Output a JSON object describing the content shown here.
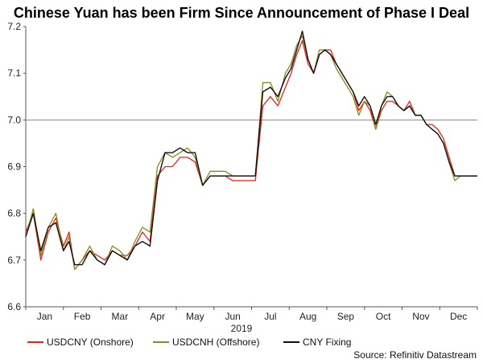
{
  "chart_data": {
    "type": "line",
    "title": "Chinese Yuan has been Firm Since Announcement of Phase I Deal",
    "xlabel": "2019",
    "ylabel": "",
    "source": "Source: Refinitiv Datastream",
    "ylim": [
      6.6,
      7.2
    ],
    "y_ticks": [
      "6.6",
      "6.7",
      "6.8",
      "6.9",
      "7.0",
      "7.1",
      "7.2"
    ],
    "reference_line": 7.0,
    "x_months": [
      "Jan",
      "Feb",
      "Mar",
      "Apr",
      "May",
      "Jun",
      "Jul",
      "Aug",
      "Sep",
      "Oct",
      "Nov",
      "Dec"
    ],
    "x_month_pos": [
      0.5,
      1.5,
      2.5,
      3.5,
      4.5,
      5.5,
      6.5,
      7.5,
      8.5,
      9.5,
      10.5,
      11.5
    ],
    "xlim": [
      0,
      12
    ],
    "grid": false,
    "legend_position": "bottom",
    "series": [
      {
        "name": "USDCNY (Onshore)",
        "color": "#e8201c",
        "x": [
          0.0,
          0.2,
          0.4,
          0.6,
          0.8,
          1.0,
          1.15,
          1.3,
          1.5,
          1.7,
          1.9,
          2.1,
          2.3,
          2.5,
          2.7,
          2.9,
          3.1,
          3.3,
          3.5,
          3.7,
          3.9,
          4.1,
          4.3,
          4.5,
          4.7,
          4.9,
          5.1,
          5.3,
          5.5,
          5.7,
          5.9,
          6.1,
          6.3,
          6.5,
          6.7,
          6.9,
          7.05,
          7.2,
          7.35,
          7.5,
          7.65,
          7.8,
          7.95,
          8.1,
          8.25,
          8.4,
          8.55,
          8.7,
          8.85,
          9.0,
          9.15,
          9.3,
          9.45,
          9.6,
          9.75,
          9.9,
          10.05,
          10.2,
          10.35,
          10.5,
          10.65,
          10.8,
          10.95,
          11.1,
          11.25,
          11.4,
          11.55,
          11.7,
          11.85,
          12.0
        ],
        "values": [
          6.76,
          6.8,
          6.7,
          6.76,
          6.79,
          6.73,
          6.76,
          6.68,
          6.7,
          6.72,
          6.71,
          6.7,
          6.72,
          6.71,
          6.71,
          6.73,
          6.76,
          6.74,
          6.88,
          6.9,
          6.9,
          6.92,
          6.92,
          6.91,
          6.86,
          6.88,
          6.88,
          6.88,
          6.87,
          6.87,
          6.87,
          6.87,
          7.03,
          7.05,
          7.03,
          7.07,
          7.1,
          7.14,
          7.17,
          7.12,
          7.1,
          7.14,
          7.15,
          7.15,
          7.12,
          7.1,
          7.08,
          7.06,
          7.02,
          7.04,
          7.02,
          6.98,
          7.02,
          7.04,
          7.04,
          7.03,
          7.02,
          7.04,
          7.01,
          7.01,
          6.99,
          6.99,
          6.98,
          6.96,
          6.92,
          6.88,
          6.88,
          6.88,
          6.88,
          6.88
        ]
      },
      {
        "name": "USDCNH (Offshore)",
        "color": "#8a8a1c",
        "x": [
          0.0,
          0.2,
          0.4,
          0.6,
          0.8,
          1.0,
          1.15,
          1.3,
          1.5,
          1.7,
          1.9,
          2.1,
          2.3,
          2.5,
          2.7,
          2.9,
          3.1,
          3.3,
          3.5,
          3.7,
          3.9,
          4.1,
          4.3,
          4.5,
          4.7,
          4.9,
          5.1,
          5.3,
          5.5,
          5.7,
          5.9,
          6.1,
          6.3,
          6.5,
          6.7,
          6.9,
          7.05,
          7.2,
          7.35,
          7.5,
          7.65,
          7.8,
          7.95,
          8.1,
          8.25,
          8.4,
          8.55,
          8.7,
          8.85,
          9.0,
          9.15,
          9.3,
          9.45,
          9.6,
          9.75,
          9.9,
          10.05,
          10.2,
          10.35,
          10.5,
          10.65,
          10.8,
          10.95,
          11.1,
          11.25,
          11.4,
          11.55,
          11.7,
          11.85,
          12.0
        ],
        "values": [
          6.75,
          6.81,
          6.71,
          6.77,
          6.8,
          6.72,
          6.75,
          6.68,
          6.7,
          6.73,
          6.7,
          6.69,
          6.73,
          6.72,
          6.7,
          6.74,
          6.77,
          6.76,
          6.9,
          6.93,
          6.92,
          6.93,
          6.94,
          6.92,
          6.86,
          6.89,
          6.89,
          6.89,
          6.88,
          6.88,
          6.88,
          6.88,
          7.08,
          7.08,
          7.04,
          7.1,
          7.12,
          7.16,
          7.18,
          7.13,
          7.1,
          7.15,
          7.15,
          7.14,
          7.11,
          7.09,
          7.07,
          7.05,
          7.01,
          7.04,
          7.03,
          6.98,
          7.03,
          7.06,
          7.05,
          7.03,
          7.02,
          7.03,
          7.01,
          7.01,
          6.99,
          6.98,
          6.97,
          6.95,
          6.91,
          6.87,
          6.88,
          6.88,
          6.88,
          6.88
        ]
      },
      {
        "name": "CNY Fixing",
        "color": "#111111",
        "x": [
          0.0,
          0.2,
          0.4,
          0.6,
          0.8,
          1.0,
          1.15,
          1.3,
          1.5,
          1.7,
          1.9,
          2.1,
          2.3,
          2.5,
          2.7,
          2.9,
          3.1,
          3.3,
          3.5,
          3.7,
          3.9,
          4.1,
          4.3,
          4.5,
          4.7,
          4.9,
          5.1,
          5.3,
          5.5,
          5.7,
          5.9,
          6.1,
          6.3,
          6.5,
          6.7,
          6.9,
          7.05,
          7.2,
          7.35,
          7.5,
          7.65,
          7.8,
          7.95,
          8.1,
          8.25,
          8.4,
          8.55,
          8.7,
          8.85,
          9.0,
          9.15,
          9.3,
          9.45,
          9.6,
          9.75,
          9.9,
          10.05,
          10.2,
          10.35,
          10.5,
          10.65,
          10.8,
          10.95,
          11.1,
          11.25,
          11.4,
          11.55,
          11.7,
          11.85,
          12.0
        ],
        "values": [
          6.75,
          6.8,
          6.72,
          6.77,
          6.78,
          6.72,
          6.74,
          6.69,
          6.69,
          6.72,
          6.7,
          6.69,
          6.72,
          6.71,
          6.7,
          6.73,
          6.74,
          6.73,
          6.87,
          6.93,
          6.93,
          6.94,
          6.93,
          6.93,
          6.86,
          6.88,
          6.88,
          6.88,
          6.88,
          6.88,
          6.88,
          6.88,
          7.06,
          7.07,
          7.05,
          7.09,
          7.11,
          7.15,
          7.19,
          7.13,
          7.1,
          7.14,
          7.15,
          7.14,
          7.12,
          7.1,
          7.08,
          7.06,
          7.03,
          7.05,
          7.03,
          6.99,
          7.03,
          7.05,
          7.05,
          7.03,
          7.02,
          7.03,
          7.01,
          7.01,
          6.99,
          6.98,
          6.97,
          6.95,
          6.91,
          6.88,
          6.88,
          6.88,
          6.88,
          6.88
        ]
      }
    ]
  }
}
